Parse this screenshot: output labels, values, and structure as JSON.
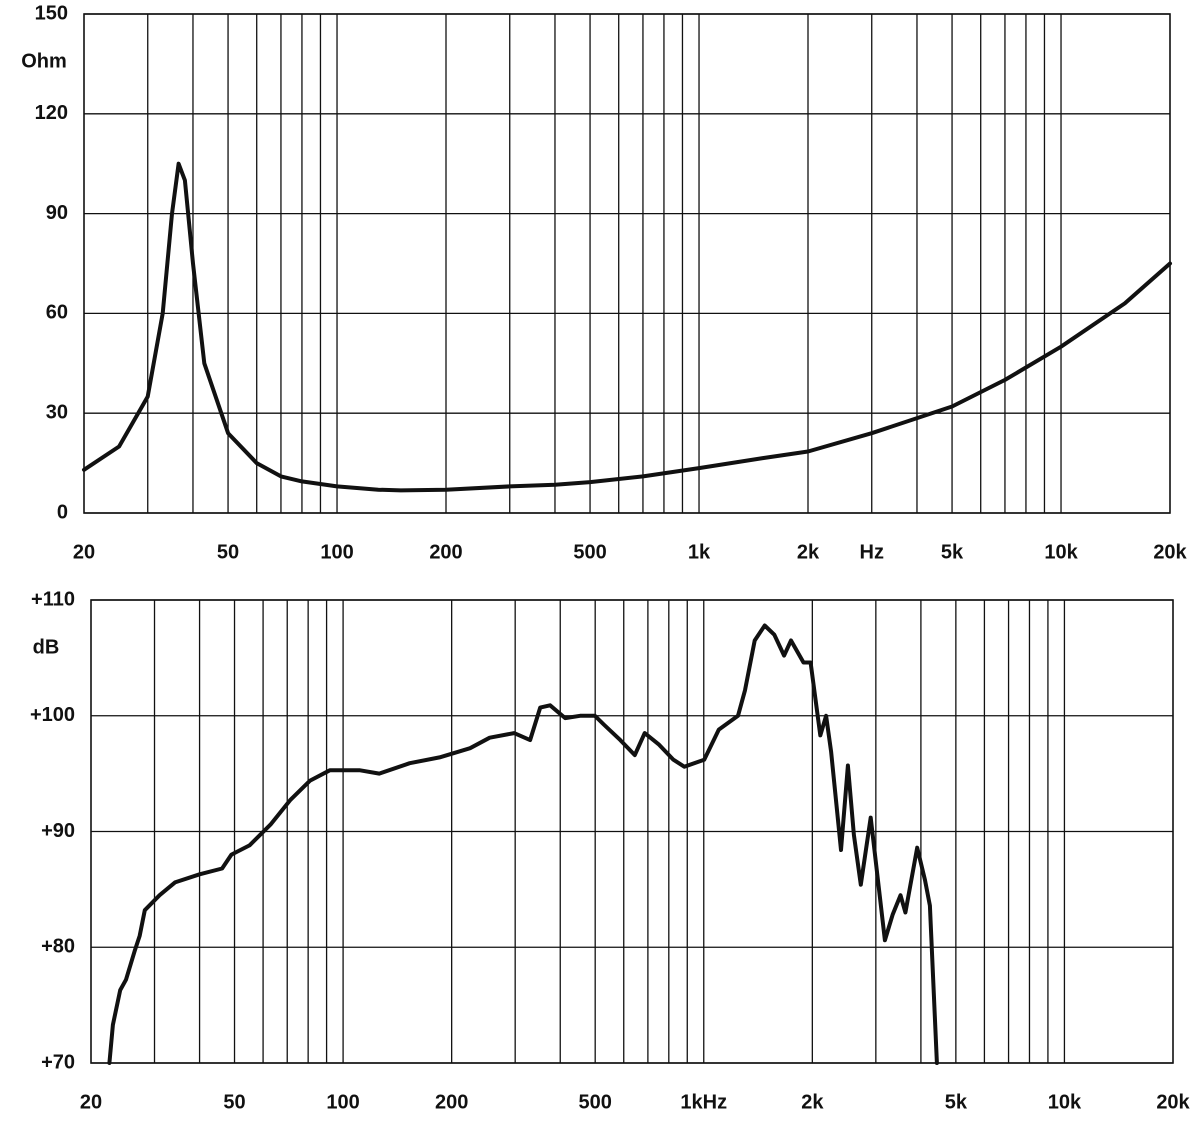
{
  "chart_data": [
    {
      "type": "line",
      "y_unit": "Ohm",
      "xscale": "log",
      "xlim": [
        20,
        20000
      ],
      "ylim": [
        0,
        150
      ],
      "yticks": [
        0,
        30,
        60,
        90,
        120,
        150
      ],
      "xticks": [
        20,
        50,
        100,
        200,
        500,
        {
          "value": 1000,
          "label": "1k"
        },
        {
          "value": 2000,
          "label": "2k"
        },
        {
          "value": 3000,
          "label": "Hz"
        },
        {
          "value": 5000,
          "label": "5k"
        },
        {
          "value": 10000,
          "label": "10k"
        },
        {
          "value": 20000,
          "label": "20k"
        }
      ],
      "xgrid": [
        30,
        40,
        50,
        60,
        70,
        80,
        90,
        100,
        200,
        300,
        400,
        500,
        600,
        700,
        800,
        900,
        1000,
        2000,
        3000,
        4000,
        5000,
        6000,
        7000,
        8000,
        9000,
        10000
      ],
      "grid": true,
      "series": [
        {
          "color": "#111111",
          "x": [
            20,
            25,
            30,
            33,
            35,
            36.5,
            38,
            40,
            43,
            50,
            60,
            70,
            80,
            100,
            130,
            150,
            200,
            300,
            400,
            500,
            700,
            1000,
            1500,
            2000,
            3000,
            5000,
            7000,
            10000,
            15000,
            20000
          ],
          "values": [
            13,
            20,
            35,
            60,
            90,
            105,
            100,
            75,
            45,
            24,
            15,
            11,
            9.5,
            8,
            7,
            6.8,
            7,
            8,
            8.5,
            9.3,
            11,
            13.5,
            16.5,
            18.5,
            24,
            32,
            40,
            50,
            63,
            75
          ]
        }
      ]
    },
    {
      "type": "line",
      "y_unit": "dB",
      "xscale": "log",
      "xlim": [
        20,
        20000
      ],
      "ylim": [
        70,
        110
      ],
      "yticks": [
        {
          "value": 70,
          "label": "+70"
        },
        {
          "value": 80,
          "label": "+80"
        },
        {
          "value": 90,
          "label": "+90"
        },
        {
          "value": 100,
          "label": "+100"
        },
        {
          "value": 110,
          "label": "+110"
        }
      ],
      "xticks": [
        20,
        50,
        100,
        200,
        500,
        {
          "value": 1000,
          "label": "1kHz"
        },
        {
          "value": 2000,
          "label": "2k"
        },
        {
          "value": 5000,
          "label": "5k"
        },
        {
          "value": 10000,
          "label": "10k"
        },
        {
          "value": 20000,
          "label": "20k"
        }
      ],
      "xgrid": [
        30,
        40,
        50,
        60,
        70,
        80,
        90,
        100,
        200,
        300,
        400,
        500,
        600,
        700,
        800,
        900,
        1000,
        2000,
        3000,
        4000,
        5000,
        6000,
        7000,
        8000,
        9000,
        10000
      ],
      "grid": true,
      "series": [
        {
          "color": "#111111",
          "x": [
            22.5,
            23,
            24.1,
            25,
            26.5,
            27.3,
            28.2,
            31,
            34.2,
            40,
            46.2,
            49,
            55,
            62.9,
            71.3,
            81,
            92,
            111,
            126,
            153,
            185,
            225,
            255,
            298,
            330,
            352,
            375,
            413,
            454,
            499,
            530,
            587,
            644,
            686,
            752,
            824,
            883,
            1003,
            1101,
            1244,
            1301,
            1384,
            1476,
            1569,
            1670,
            1745,
            1890,
            1978,
            2105,
            2184,
            2254,
            2402,
            2510,
            2607,
            2726,
            2904,
            3178,
            3339,
            3511,
            3622,
            3907,
            4107,
            4237,
            4431
          ],
          "values": [
            70,
            73.3,
            76.3,
            77.2,
            79.8,
            81,
            83.2,
            84.5,
            85.6,
            86.3,
            86.8,
            88,
            88.8,
            90.6,
            92.7,
            94.4,
            95.3,
            95.3,
            95,
            95.9,
            96.4,
            97.2,
            98.1,
            98.5,
            97.9,
            100.7,
            100.9,
            99.8,
            100,
            100,
            99.2,
            97.9,
            96.6,
            98.5,
            97.5,
            96.2,
            95.6,
            96.2,
            98.8,
            100,
            102.2,
            106.5,
            107.8,
            107,
            105.2,
            106.5,
            104.6,
            104.6,
            98.3,
            100,
            96.9,
            88.4,
            95.7,
            89.7,
            85.4,
            91.2,
            80.6,
            82.8,
            84.5,
            83,
            88.6,
            85.8,
            83.6,
            70
          ]
        }
      ]
    }
  ]
}
